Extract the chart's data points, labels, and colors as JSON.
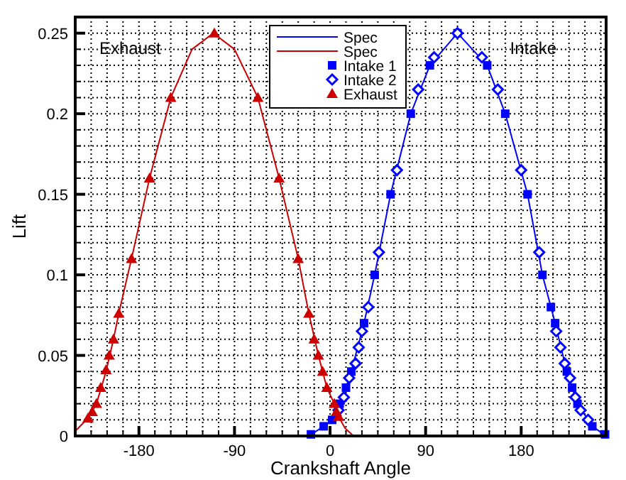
{
  "chart_data": {
    "type": "line",
    "xlabel": "Crankshaft Angle",
    "ylabel": "Lift",
    "xlim": [
      -240,
      260
    ],
    "ylim": [
      0,
      0.26
    ],
    "xticks": [
      {
        "value": -240,
        "label": null
      },
      {
        "value": -225,
        "label": null
      },
      {
        "value": -210,
        "label": null
      },
      {
        "value": -195,
        "label": null
      },
      -180,
      {
        "value": -165,
        "label": null
      },
      {
        "value": -150,
        "label": null
      },
      {
        "value": -135,
        "label": null
      },
      {
        "value": -120,
        "label": null
      },
      {
        "value": -105,
        "label": null
      },
      -90,
      {
        "value": -75,
        "label": null
      },
      {
        "value": -60,
        "label": null
      },
      {
        "value": -45,
        "label": null
      },
      {
        "value": -30,
        "label": null
      },
      {
        "value": -15,
        "label": null
      },
      0,
      {
        "value": 15,
        "label": null
      },
      {
        "value": 30,
        "label": null
      },
      {
        "value": 45,
        "label": null
      },
      {
        "value": 60,
        "label": null
      },
      {
        "value": 75,
        "label": null
      },
      90,
      {
        "value": 105,
        "label": null
      },
      {
        "value": 120,
        "label": null
      },
      {
        "value": 135,
        "label": null
      },
      {
        "value": 150,
        "label": null
      },
      {
        "value": 165,
        "label": null
      },
      180,
      {
        "value": 195,
        "label": null
      },
      {
        "value": 210,
        "label": null
      },
      {
        "value": 225,
        "label": null
      },
      {
        "value": 240,
        "label": null
      },
      {
        "value": 255,
        "label": null
      }
    ],
    "yticks": [
      0,
      {
        "value": 0.01,
        "label": null
      },
      {
        "value": 0.02,
        "label": null
      },
      {
        "value": 0.03,
        "label": null
      },
      {
        "value": 0.04,
        "label": null
      },
      0.05,
      {
        "value": 0.06,
        "label": null
      },
      {
        "value": 0.07,
        "label": null
      },
      {
        "value": 0.08,
        "label": null
      },
      {
        "value": 0.09,
        "label": null
      },
      0.1,
      {
        "value": 0.11,
        "label": null
      },
      {
        "value": 0.12,
        "label": null
      },
      {
        "value": 0.13,
        "label": null
      },
      {
        "value": 0.14,
        "label": null
      },
      0.15,
      {
        "value": 0.16,
        "label": null
      },
      {
        "value": 0.17,
        "label": null
      },
      {
        "value": 0.18,
        "label": null
      },
      {
        "value": 0.19,
        "label": null
      },
      0.2,
      {
        "value": 0.21,
        "label": null
      },
      {
        "value": 0.22,
        "label": null
      },
      {
        "value": 0.23,
        "label": null
      },
      {
        "value": 0.24,
        "label": null
      },
      0.25
    ],
    "grid": true,
    "legend": "top",
    "annotations": [
      "Exhaust",
      "Intake"
    ],
    "series": [
      {
        "type": "line",
        "name": "Spec",
        "color": "#0000ff",
        "marker": "none",
        "line_style": "solid",
        "x": [
          -20,
          -6,
          2,
          9,
          15,
          20,
          32,
          42,
          57,
          76,
          94,
          120,
          148,
          165,
          186,
          200,
          212,
          223,
          228,
          233,
          247,
          260
        ],
        "values": [
          0,
          0.006,
          0.01,
          0.02,
          0.03,
          0.04,
          0.07,
          0.1,
          0.15,
          0.2,
          0.23,
          0.25,
          0.23,
          0.2,
          0.15,
          0.1,
          0.07,
          0.04,
          0.03,
          0.02,
          0.006,
          0
        ]
      },
      {
        "type": "line",
        "name": "Spec",
        "color": "#cc0000",
        "marker": "none",
        "line_style": "solid",
        "x": [
          -240,
          -228,
          -220,
          -211,
          -204,
          -199,
          -187,
          -170,
          -150,
          -130,
          -110,
          -90,
          -68,
          -48,
          -30,
          -20,
          -11,
          -3,
          4,
          8,
          14,
          22
        ],
        "values": [
          0.003,
          0.011,
          0.02,
          0.04,
          0.06,
          0.076,
          0.11,
          0.16,
          0.21,
          0.24,
          0.25,
          0.24,
          0.21,
          0.16,
          0.11,
          0.076,
          0.05,
          0.03,
          0.02,
          0.012,
          0.005,
          0
        ]
      },
      {
        "type": "scatter",
        "name": "Intake 1",
        "color": "#0000ff",
        "marker": "square",
        "x": [
          -18,
          -6,
          2,
          9,
          15,
          20,
          32,
          42,
          57,
          76,
          94,
          120,
          148,
          165,
          186,
          200,
          208,
          212,
          223,
          228,
          233,
          247,
          259
        ],
        "values": [
          0.001,
          0.006,
          0.01,
          0.02,
          0.03,
          0.04,
          0.07,
          0.1,
          0.15,
          0.2,
          0.23,
          0.25,
          0.23,
          0.2,
          0.15,
          0.1,
          0.08,
          0.07,
          0.04,
          0.03,
          0.02,
          0.006,
          0.001
        ]
      },
      {
        "type": "scatter",
        "name": "Intake 2",
        "color": "#0000ff",
        "marker": "diamond",
        "x": [
          8,
          13,
          18,
          24,
          27,
          30,
          36,
          46,
          63,
          83,
          98,
          120,
          143,
          158,
          180,
          197,
          213,
          217,
          221,
          226,
          231,
          236,
          243
        ],
        "values": [
          0.016,
          0.024,
          0.036,
          0.045,
          0.055,
          0.065,
          0.08,
          0.114,
          0.165,
          0.215,
          0.235,
          0.25,
          0.235,
          0.215,
          0.165,
          0.114,
          0.065,
          0.055,
          0.045,
          0.036,
          0.024,
          0.016,
          0.01
        ]
      },
      {
        "type": "scatter",
        "name": "Exhaust",
        "color": "#cc0000",
        "marker": "triangle",
        "x": [
          -228,
          -224,
          -220,
          -216,
          -211,
          -208,
          -204,
          -199,
          -187,
          -170,
          -150,
          -109,
          -68,
          -48,
          -30,
          -20,
          -15,
          -11,
          -7,
          -3,
          4,
          6,
          8
        ],
        "values": [
          0.011,
          0.015,
          0.02,
          0.03,
          0.041,
          0.05,
          0.06,
          0.076,
          0.11,
          0.16,
          0.21,
          0.25,
          0.21,
          0.16,
          0.11,
          0.076,
          0.06,
          0.05,
          0.04,
          0.03,
          0.02,
          0.015,
          0.012
        ]
      }
    ]
  }
}
